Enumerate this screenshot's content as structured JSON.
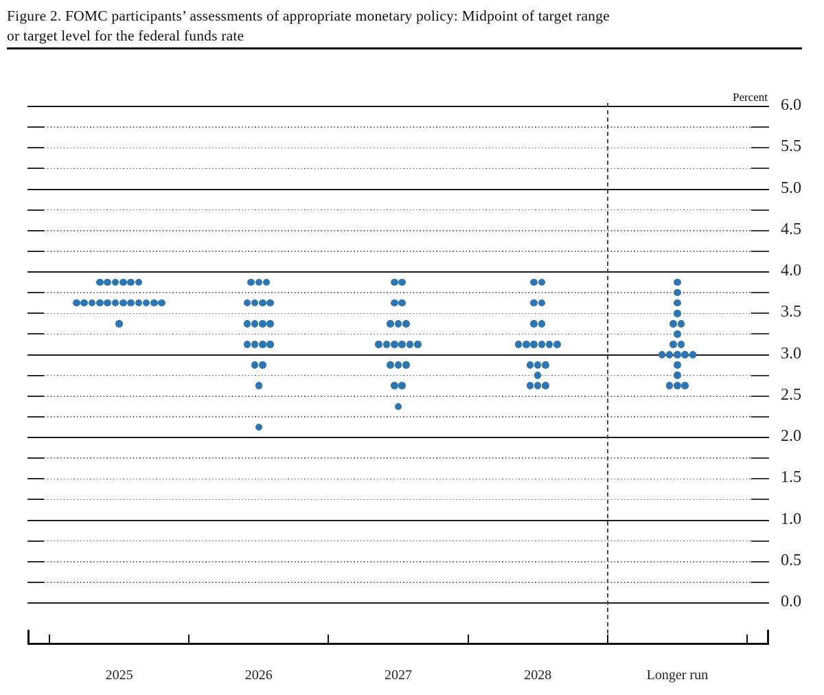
{
  "header": {
    "line1": "Figure 2. FOMC participants’ assessments of appropriate monetary policy: Midpoint of target range",
    "line2": "or target level for the federal funds rate"
  },
  "chart_data": {
    "type": "scatter",
    "subtype": "fomc-dot-plot",
    "title": "Figure 2. FOMC participants’ assessments of appropriate monetary policy: Midpoint of target range or target level for the federal funds rate",
    "unit_label": "Percent",
    "categories": [
      "2025",
      "2026",
      "2027",
      "2028",
      "Longer run"
    ],
    "ylim": [
      0.0,
      6.0
    ],
    "y_tick_labels": [
      "6.0",
      "5.5",
      "5.0",
      "4.5",
      "4.0",
      "3.5",
      "3.0",
      "2.5",
      "2.0",
      "1.5",
      "1.0",
      "0.5",
      "0.0"
    ],
    "grid_step": 0.25,
    "solid_line_step": 1.0,
    "grid": true,
    "legend_position": "none",
    "participants_per_column": 19,
    "series": [
      {
        "category": "2025",
        "dots": [
          {
            "rate": 3.875,
            "count": 6
          },
          {
            "rate": 3.625,
            "count": 12
          },
          {
            "rate": 3.375,
            "count": 1
          }
        ]
      },
      {
        "category": "2026",
        "dots": [
          {
            "rate": 3.875,
            "count": 3
          },
          {
            "rate": 3.625,
            "count": 4
          },
          {
            "rate": 3.375,
            "count": 4
          },
          {
            "rate": 3.125,
            "count": 4
          },
          {
            "rate": 2.875,
            "count": 2
          },
          {
            "rate": 2.625,
            "count": 1
          },
          {
            "rate": 2.125,
            "count": 1
          }
        ]
      },
      {
        "category": "2027",
        "dots": [
          {
            "rate": 3.875,
            "count": 2
          },
          {
            "rate": 3.625,
            "count": 2
          },
          {
            "rate": 3.375,
            "count": 3
          },
          {
            "rate": 3.125,
            "count": 6
          },
          {
            "rate": 2.875,
            "count": 3
          },
          {
            "rate": 2.625,
            "count": 2
          },
          {
            "rate": 2.375,
            "count": 1
          }
        ]
      },
      {
        "category": "2028",
        "dots": [
          {
            "rate": 3.875,
            "count": 2
          },
          {
            "rate": 3.625,
            "count": 2
          },
          {
            "rate": 3.375,
            "count": 2
          },
          {
            "rate": 3.125,
            "count": 6
          },
          {
            "rate": 2.875,
            "count": 3
          },
          {
            "rate": 2.75,
            "count": 1
          },
          {
            "rate": 2.625,
            "count": 3
          }
        ]
      },
      {
        "category": "Longer run",
        "dots": [
          {
            "rate": 3.875,
            "count": 1
          },
          {
            "rate": 3.75,
            "count": 1
          },
          {
            "rate": 3.625,
            "count": 1
          },
          {
            "rate": 3.5,
            "count": 1
          },
          {
            "rate": 3.375,
            "count": 2
          },
          {
            "rate": 3.25,
            "count": 1
          },
          {
            "rate": 3.125,
            "count": 2
          },
          {
            "rate": 3.0,
            "count": 5
          },
          {
            "rate": 2.875,
            "count": 1
          },
          {
            "rate": 2.75,
            "count": 1
          },
          {
            "rate": 2.625,
            "count": 3
          }
        ]
      }
    ]
  },
  "colors": {
    "dot": "#2b76b4",
    "solid_grid": "#1c1c1c",
    "dotted_grid": "#6e6e6e",
    "axis": "#111111",
    "text": "#1a1a1a"
  }
}
